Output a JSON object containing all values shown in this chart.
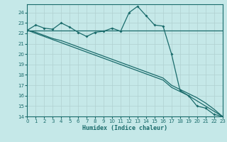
{
  "xlabel": "Humidex (Indice chaleur)",
  "background_color": "#c5e8e8",
  "grid_color": "#b0d0d0",
  "line_color": "#1a6b6b",
  "xlim": [
    0,
    23
  ],
  "ylim": [
    14,
    24.8
  ],
  "yticks": [
    14,
    15,
    16,
    17,
    18,
    19,
    20,
    21,
    22,
    23,
    24
  ],
  "xticks": [
    0,
    1,
    2,
    3,
    4,
    5,
    6,
    7,
    8,
    9,
    10,
    11,
    12,
    13,
    14,
    15,
    16,
    17,
    18,
    19,
    20,
    21,
    22,
    23
  ],
  "curve_x": [
    0,
    1,
    2,
    3,
    4,
    5,
    6,
    7,
    8,
    9,
    10,
    11,
    12,
    13,
    14,
    15,
    16,
    17,
    18,
    19,
    20,
    21,
    22,
    23
  ],
  "curve_y": [
    22.3,
    22.8,
    22.5,
    22.4,
    23.0,
    22.6,
    22.1,
    21.7,
    22.1,
    22.2,
    22.5,
    22.2,
    24.0,
    24.6,
    23.7,
    22.8,
    22.7,
    20.0,
    16.5,
    16.0,
    15.0,
    14.8,
    14.2,
    14.0
  ],
  "flat_x": [
    0,
    5,
    10,
    11,
    14,
    15,
    23
  ],
  "flat_y": [
    22.3,
    22.3,
    22.3,
    22.3,
    22.3,
    22.3,
    22.3
  ],
  "diag1_x": [
    0,
    1,
    2,
    3,
    4,
    5,
    6,
    7,
    8,
    9,
    10,
    11,
    12,
    13,
    14,
    15,
    16,
    17,
    18,
    19,
    20,
    21,
    22,
    23
  ],
  "diag1_y": [
    22.3,
    22.1,
    21.8,
    21.5,
    21.3,
    21.0,
    20.7,
    20.4,
    20.1,
    19.8,
    19.5,
    19.2,
    18.9,
    18.6,
    18.3,
    18.0,
    17.7,
    17.0,
    16.6,
    16.2,
    15.8,
    15.3,
    14.7,
    14.0
  ],
  "diag2_x": [
    0,
    1,
    2,
    3,
    4,
    5,
    6,
    7,
    8,
    9,
    10,
    11,
    12,
    13,
    14,
    15,
    16,
    17,
    18,
    19,
    20,
    21,
    22,
    23
  ],
  "diag2_y": [
    22.3,
    22.0,
    21.7,
    21.4,
    21.1,
    20.8,
    20.5,
    20.2,
    19.9,
    19.6,
    19.3,
    19.0,
    18.7,
    18.4,
    18.1,
    17.8,
    17.5,
    16.8,
    16.4,
    16.0,
    15.5,
    15.0,
    14.5,
    14.0
  ]
}
